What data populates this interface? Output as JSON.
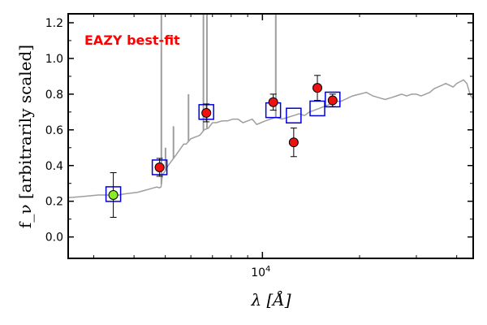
{
  "chart_data": {
    "type": "scatter",
    "title": "",
    "annotation": "EAZY best-fit",
    "xlabel": "λ [Å]",
    "ylabel": "f_ν [arbitrarily scaled]",
    "xscale": "log",
    "xlim": [
      2500,
      45000
    ],
    "ylim": [
      -0.12,
      1.25
    ],
    "xticks_major": [
      10000
    ],
    "xtick_labels": [
      "10^4"
    ],
    "yticks": [
      0.0,
      0.2,
      0.4,
      0.6,
      0.8,
      1.0,
      1.2
    ],
    "ytick_labels": [
      "0.0",
      "0.2",
      "0.4",
      "0.6",
      "0.8",
      "1.0",
      "1.2"
    ],
    "grid": false,
    "colors": {
      "model": "#9e9e9e",
      "model_photometry": "#0000dd",
      "observed_fill": "#ee1111",
      "uv_point_fill": "#88ee22",
      "annotation": "#ff0000"
    },
    "series": [
      {
        "name": "",
        "kind": "model_spectrum",
        "x": [
          2500,
          2700,
          2900,
          3100,
          3300,
          3500,
          3700,
          3900,
          4100,
          4300,
          4500,
          4700,
          4800,
          4850,
          4900,
          5000,
          5100,
          5200,
          5300,
          5400,
          5500,
          5600,
          5700,
          5800,
          6000,
          6200,
          6400,
          6600,
          6800,
          7000,
          7200,
          7500,
          7800,
          8100,
          8400,
          8700,
          9000,
          9300,
          9600,
          9900,
          10200,
          10600,
          11000,
          11500,
          12000,
          12500,
          13000,
          13500,
          14000,
          14500,
          15000,
          15500,
          16000,
          16500,
          17000,
          17500,
          18000,
          18500,
          19000,
          20000,
          21000,
          22000,
          23000,
          24000,
          25000,
          26000,
          27000,
          28000,
          29000,
          30000,
          31000,
          32000,
          33000,
          34000,
          35000,
          36000,
          37000,
          38000,
          39000,
          40000,
          41000,
          42000,
          43000,
          44000,
          45000
        ],
        "y": [
          0.22,
          0.225,
          0.23,
          0.235,
          0.235,
          0.23,
          0.24,
          0.245,
          0.25,
          0.26,
          0.27,
          0.28,
          0.275,
          0.28,
          0.35,
          0.37,
          0.4,
          0.42,
          0.44,
          0.46,
          0.48,
          0.5,
          0.52,
          0.52,
          0.55,
          0.56,
          0.57,
          0.6,
          0.61,
          0.64,
          0.64,
          0.65,
          0.65,
          0.66,
          0.66,
          0.64,
          0.65,
          0.66,
          0.63,
          0.64,
          0.65,
          0.66,
          0.67,
          0.66,
          0.67,
          0.68,
          0.69,
          0.68,
          0.7,
          0.71,
          0.72,
          0.73,
          0.74,
          0.75,
          0.76,
          0.76,
          0.77,
          0.78,
          0.79,
          0.8,
          0.81,
          0.79,
          0.78,
          0.77,
          0.78,
          0.79,
          0.8,
          0.79,
          0.8,
          0.8,
          0.79,
          0.8,
          0.81,
          0.83,
          0.84,
          0.85,
          0.86,
          0.85,
          0.84,
          0.86,
          0.87,
          0.88,
          0.86,
          0.8,
          0.77
        ]
      },
      {
        "name": "",
        "kind": "emission_lines",
        "lines": [
          {
            "x": 4861,
            "peak": 1.25
          },
          {
            "x": 5007,
            "peak": 0.5
          },
          {
            "x": 5300,
            "peak": 0.62
          },
          {
            "x": 5900,
            "peak": 0.8
          },
          {
            "x": 6563,
            "peak": 1.25
          },
          {
            "x": 6730,
            "peak": 1.25
          },
          {
            "x": 11000,
            "peak": 1.25
          }
        ]
      },
      {
        "name": "",
        "kind": "model_photometry",
        "x": [
          3450,
          4800,
          6700,
          10800,
          12500,
          14800,
          16500
        ],
        "y": [
          0.24,
          0.39,
          0.7,
          0.71,
          0.68,
          0.72,
          0.77
        ]
      },
      {
        "name": "",
        "kind": "observed_photometry",
        "x": [
          3450,
          4800,
          6700,
          10800,
          12500,
          14800,
          16500
        ],
        "y": [
          0.235,
          0.39,
          0.695,
          0.755,
          0.53,
          0.835,
          0.765
        ],
        "yerr": [
          0.125,
          0.05,
          0.05,
          0.045,
          0.08,
          0.07,
          0.035
        ]
      }
    ]
  }
}
